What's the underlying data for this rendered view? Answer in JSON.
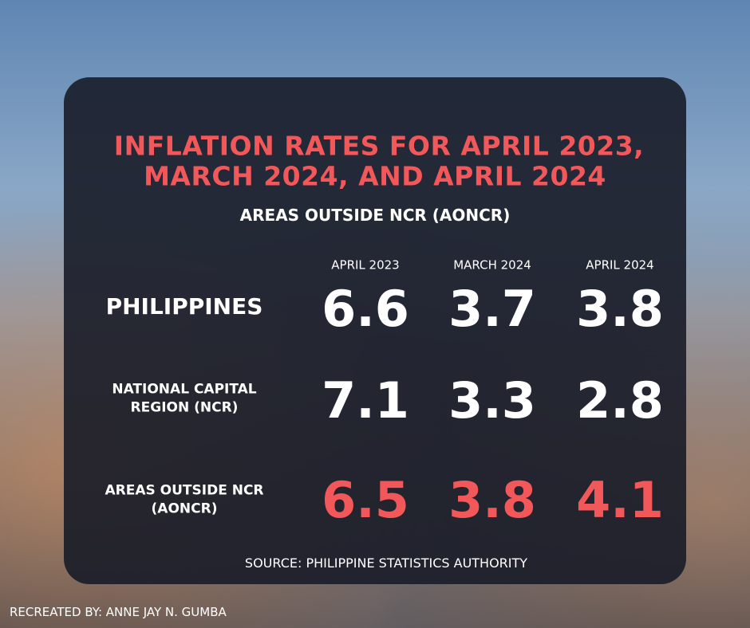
{
  "header": {
    "title_lines": [
      "INFLATION RATES FOR APRIL 2023,",
      "MARCH 2024, AND APRIL 2024"
    ],
    "subtitle": "AREAS OUTSIDE NCR (AONCR)"
  },
  "table": {
    "columns": [
      "APRIL 2023",
      "MARCH 2024",
      "APRIL 2024"
    ],
    "rows": [
      {
        "label_lines": [
          "PHILIPPINES"
        ],
        "values": [
          6.6,
          3.7,
          3.8
        ]
      },
      {
        "label_lines": [
          "NATIONAL CAPITAL",
          "REGION (NCR)"
        ],
        "values": [
          7.1,
          3.3,
          2.8
        ]
      },
      {
        "label_lines": [
          "AREAS OUTSIDE NCR",
          "(AONCR)"
        ],
        "values": [
          6.5,
          3.8,
          4.1
        ]
      }
    ]
  },
  "source": "SOURCE: PHILIPPINE STATISTICS AUTHORITY",
  "credit": "RECREATED BY: ANNE JAY N. GUMBA"
}
